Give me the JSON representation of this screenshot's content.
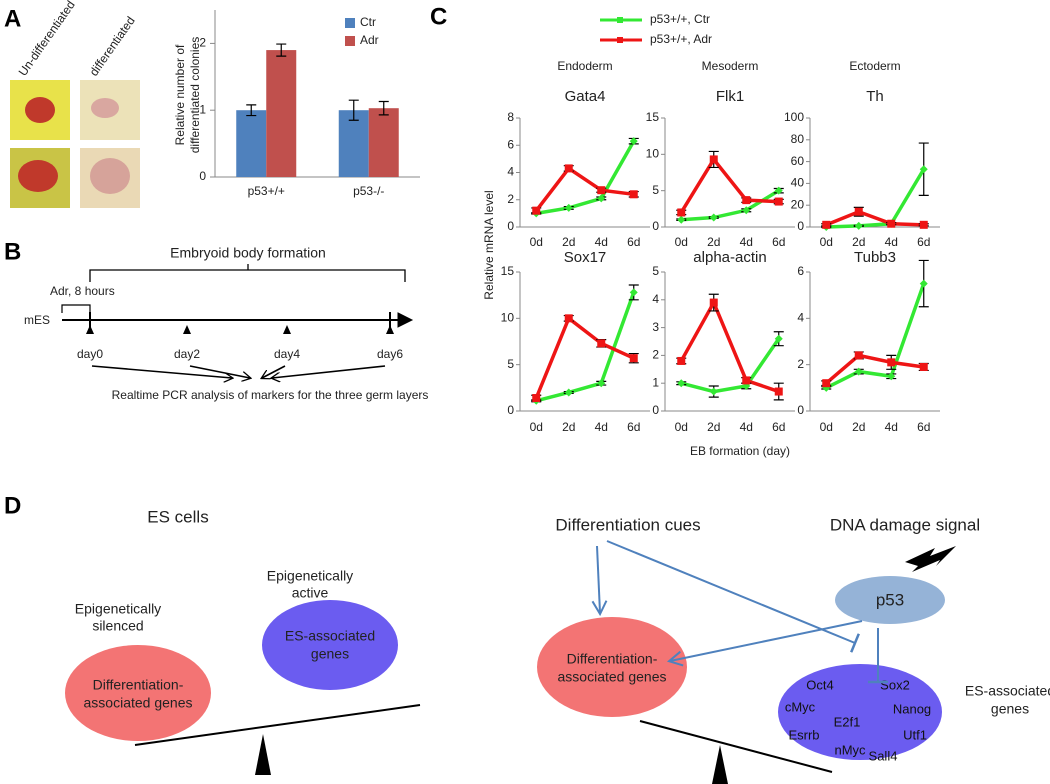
{
  "panel_labels": [
    "A",
    "B",
    "C",
    "D"
  ],
  "panel_a": {
    "image_labels": [
      "Un-differentiated",
      "differentiated"
    ]
  },
  "chart_data": [
    {
      "type": "bar",
      "ylabel": [
        "Relative number of",
        "differentiated colonies"
      ],
      "categories": [
        "p53+/+",
        "p53-/-"
      ],
      "series": [
        {
          "name": "Ctr",
          "color": "#4f81bd",
          "values": [
            1.0,
            1.0
          ],
          "errors": [
            0.08,
            0.15
          ]
        },
        {
          "name": "Adr",
          "color": "#c0504d",
          "values": [
            1.9,
            1.03
          ],
          "errors": [
            0.09,
            0.1
          ]
        }
      ],
      "ylim": [
        0,
        2.5
      ],
      "yticks": [
        0,
        1,
        2
      ]
    },
    {
      "type": "line",
      "series": [
        {
          "name": "p53+/+, Ctr",
          "color": "#33e833"
        },
        {
          "name": "p53+/+, Adr",
          "color": "#ee1515"
        }
      ],
      "x": [
        "0d",
        "2d",
        "4d",
        "6d"
      ],
      "groups": [
        "Endoderm",
        "Mesoderm",
        "Ectoderm"
      ],
      "ylabel": "Relative mRNA level",
      "xlabel": "EB formation (day)",
      "subplots": [
        {
          "title": "Gata4",
          "ylim": [
            0,
            8
          ],
          "yticks": [
            0,
            2,
            4,
            6,
            8
          ],
          "values": [
            [
              1.0,
              1.4,
              2.1,
              6.3
            ],
            [
              1.2,
              4.3,
              2.7,
              2.4
            ]
          ],
          "errors": [
            [
              0.05,
              0.1,
              0.1,
              0.2
            ],
            [
              0.2,
              0.2,
              0.15,
              0.2
            ]
          ]
        },
        {
          "title": "Flk1",
          "ylim": [
            0,
            15
          ],
          "yticks": [
            0,
            5,
            10,
            15
          ],
          "values": [
            [
              1.0,
              1.3,
              2.3,
              5.0
            ],
            [
              2.0,
              9.3,
              3.7,
              3.5
            ]
          ],
          "errors": [
            [
              0.1,
              0.1,
              0.2,
              0.3
            ],
            [
              0.3,
              1.1,
              0.3,
              0.3
            ]
          ]
        },
        {
          "title": "Th",
          "ylim": [
            0,
            100
          ],
          "yticks": [
            0,
            20,
            40,
            60,
            80,
            100
          ],
          "values": [
            [
              0,
              1,
              3,
              53
            ],
            [
              2,
              14,
              3,
              2
            ]
          ],
          "errors": [
            [
              0.5,
              0.5,
              0.5,
              24
            ],
            [
              1,
              4,
              1,
              1
            ]
          ]
        },
        {
          "title": "Sox17",
          "ylim": [
            0,
            15
          ],
          "yticks": [
            0,
            5,
            10,
            15
          ],
          "values": [
            [
              1.1,
              2.0,
              3.0,
              12.8
            ],
            [
              1.4,
              10.0,
              7.3,
              5.7
            ]
          ],
          "errors": [
            [
              0.1,
              0.1,
              0.2,
              0.8
            ],
            [
              0.3,
              0.3,
              0.4,
              0.5
            ]
          ]
        },
        {
          "title": "alpha-actin",
          "ylim": [
            0,
            5
          ],
          "yticks": [
            0,
            1,
            2,
            3,
            4,
            5
          ],
          "values": [
            [
              1.0,
              0.7,
              0.9,
              2.6
            ],
            [
              1.8,
              3.9,
              1.1,
              0.7
            ]
          ],
          "errors": [
            [
              0.05,
              0.2,
              0.1,
              0.25
            ],
            [
              0.1,
              0.3,
              0.1,
              0.3
            ]
          ]
        },
        {
          "title": "Tubb3",
          "ylim": [
            0,
            6
          ],
          "yticks": [
            0,
            2,
            4,
            6
          ],
          "values": [
            [
              1.0,
              1.7,
              1.5,
              5.5
            ],
            [
              1.2,
              2.4,
              2.1,
              1.9
            ]
          ],
          "errors": [
            [
              0.05,
              0.1,
              0.1,
              1.0
            ],
            [
              0.1,
              0.15,
              0.3,
              0.15
            ]
          ]
        }
      ]
    }
  ],
  "panel_b": {
    "bracket_label": "Embryoid body formation",
    "treatment": "Adr, 8 hours",
    "start": "mES",
    "days": [
      "day0",
      "day2",
      "day4",
      "day6"
    ],
    "caption": "Realtime PCR analysis of markers for the three germ layers"
  },
  "panel_d": {
    "left_title": "ES cells",
    "silenced": [
      "Epigenetically",
      "silenced"
    ],
    "active": [
      "Epigenetically",
      "active"
    ],
    "diff_genes": [
      "Differentiation-",
      "associated genes"
    ],
    "es_genes": [
      "ES-associated",
      "genes"
    ],
    "cues": "Differentiation cues",
    "damage": "DNA damage signal",
    "p53": "p53",
    "right_diff_genes": [
      "Differentiation-",
      "associated genes"
    ],
    "gene_list": [
      "Oct4",
      "Sox2",
      "cMyc",
      "Nanog",
      "E2f1",
      "Esrrb",
      "Utf1",
      "nMyc",
      "Sall4"
    ],
    "right_es_label": [
      "ES-associated",
      "genes"
    ]
  }
}
